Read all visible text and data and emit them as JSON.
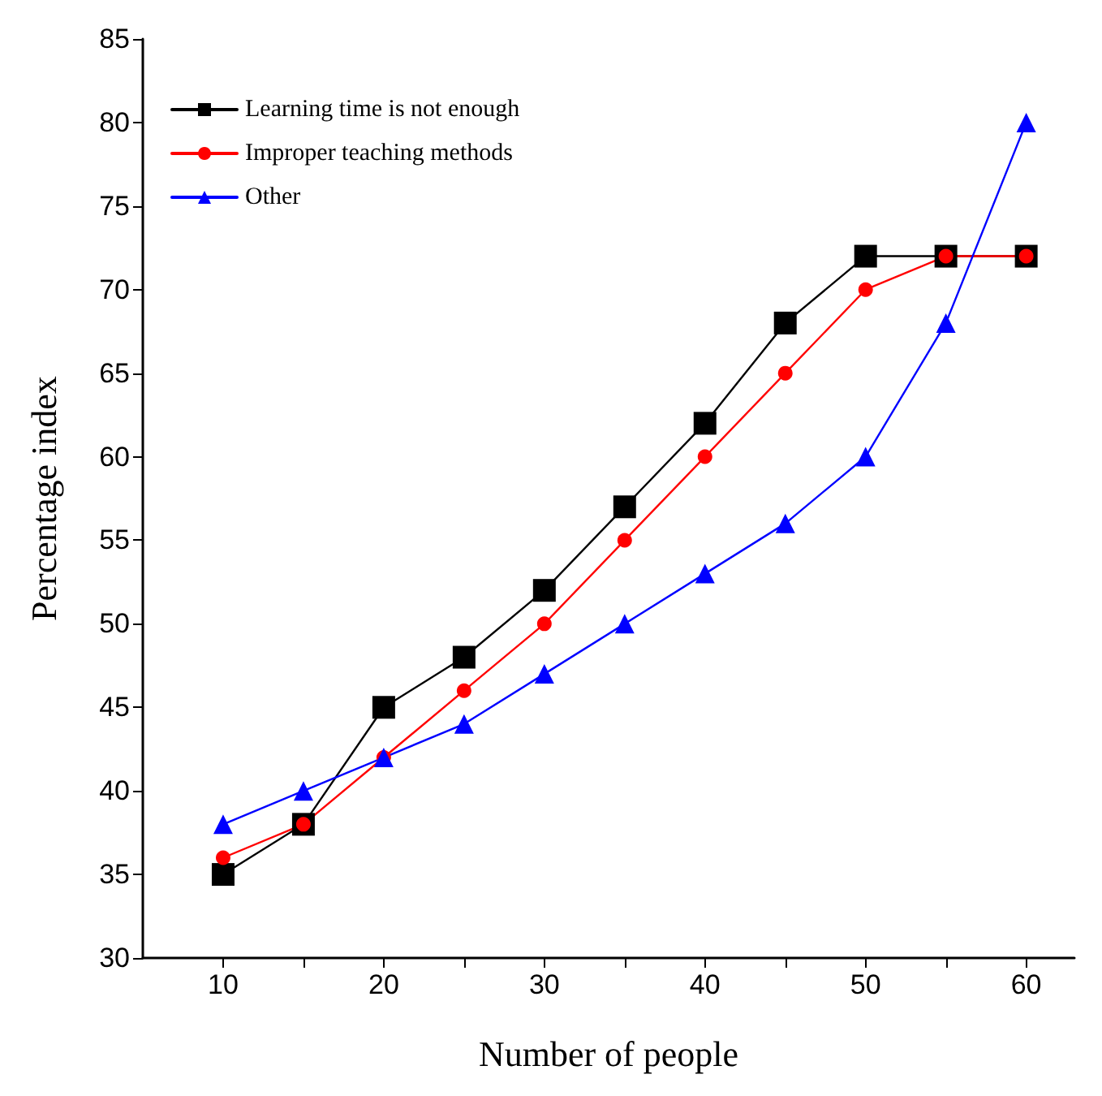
{
  "chart_data": {
    "type": "line",
    "xlabel": "Number of people",
    "ylabel": "Percentage index",
    "x": [
      10,
      15,
      20,
      25,
      30,
      35,
      40,
      45,
      50,
      55,
      60
    ],
    "xlim": [
      5,
      63
    ],
    "xticks": [
      10,
      {
        "value": 15,
        "label": null
      },
      20,
      {
        "value": 25,
        "label": null
      },
      30,
      {
        "value": 35,
        "label": null
      },
      40,
      {
        "value": 45,
        "label": null
      },
      50,
      {
        "value": 55,
        "label": null
      },
      60
    ],
    "ylim": [
      30,
      85
    ],
    "yticks": [
      30,
      35,
      40,
      45,
      50,
      55,
      60,
      65,
      70,
      75,
      80,
      85
    ],
    "grid": false,
    "legend": "top left",
    "line_style": "solid",
    "series": [
      {
        "name": "Learning time is not enough",
        "color": "#000000",
        "marker": "square",
        "values": [
          35,
          38,
          45,
          48,
          52,
          57,
          62,
          68,
          72,
          72,
          72
        ]
      },
      {
        "name": "Improper teaching methods",
        "color": "#ff0000",
        "marker": "circle",
        "values": [
          36,
          38,
          42,
          46,
          50,
          55,
          60,
          65,
          70,
          72,
          72
        ]
      },
      {
        "name": "Other",
        "color": "#0000ff",
        "marker": "triangle",
        "values": [
          38,
          40,
          42,
          44,
          47,
          50,
          53,
          56,
          60,
          68,
          80
        ]
      }
    ]
  }
}
